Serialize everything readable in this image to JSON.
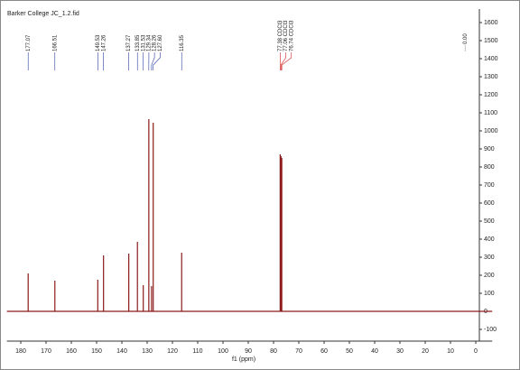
{
  "chart_data": {
    "type": "spectrum",
    "title": "Barker College JC_1.2.fid",
    "x_label": "f1 (ppm)",
    "x": [
      177.07,
      166.51,
      149.53,
      147.26,
      137.27,
      133.85,
      131.53,
      129.34,
      128.26,
      127.6,
      116.35,
      77.38,
      77.06,
      76.74
    ],
    "values": [
      210,
      170,
      175,
      310,
      320,
      385,
      145,
      1065,
      140,
      1045,
      325,
      870,
      860,
      850
    ],
    "peak_labels": [
      "177.07",
      "166.51",
      "149.53",
      "147.26",
      "137.27",
      "133.85",
      "131.53",
      "129.34",
      "128.26",
      "127.60",
      "116.35",
      "77.38 CDCl3",
      "77.06 CDCl3",
      "76.74 CDCl3"
    ],
    "label_colors": [
      "#2a3f9e",
      "#2a3f9e",
      "#2a3f9e",
      "#2a3f9e",
      "#2a3f9e",
      "#2a3f9e",
      "#2a3f9e",
      "#2a3f9e",
      "#2a3f9e",
      "#2a3f9e",
      "#2a3f9e",
      "#d02020",
      "#d02020",
      "#d02020"
    ],
    "reference": {
      "label": "0.00",
      "color": "#9a9a9a"
    },
    "color": "#8b1a1a",
    "xlim": [
      185.5,
      -6.5
    ],
    "xticks": [
      180,
      170,
      160,
      150,
      140,
      130,
      120,
      110,
      100,
      90,
      80,
      70,
      60,
      50,
      40,
      30,
      20,
      10,
      0
    ],
    "ylim": [
      -165,
      1675
    ],
    "yticks": [
      -100,
      0,
      100,
      200,
      300,
      400,
      500,
      600,
      700,
      800,
      900,
      1000,
      1100,
      1200,
      1300,
      1400,
      1500,
      1600
    ]
  }
}
